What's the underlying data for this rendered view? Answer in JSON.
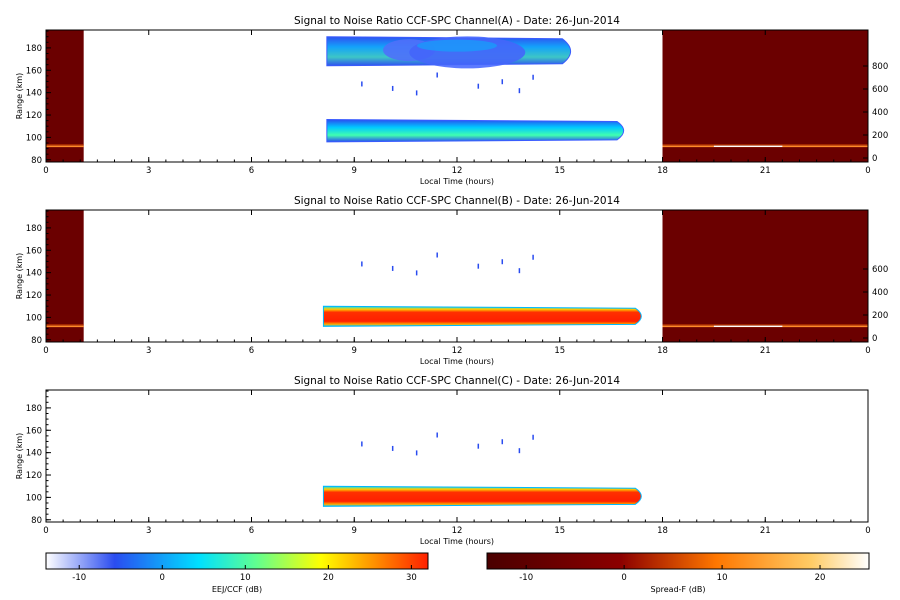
{
  "chart_data": [
    {
      "type": "heatmap",
      "title": "Signal to Noise Ratio CCF-SPC Channel(A) - Date: 26-Jun-2014",
      "xlabel": "Local Time (hours)",
      "ylabel": "Range (km)",
      "xlim": [
        0,
        24
      ],
      "ylim": [
        78,
        196
      ],
      "x_ticks": [
        "0",
        "3",
        "6",
        "9",
        "12",
        "15",
        "18",
        "21",
        "0"
      ],
      "y_ticks": [
        "80",
        "100",
        "120",
        "140",
        "160",
        "180"
      ],
      "y2_ticks": [
        "0",
        "200",
        "400",
        "600",
        "800"
      ],
      "spread_f_panels": [
        [
          0,
          1.1
        ],
        [
          18,
          24
        ]
      ],
      "spread_f_trace_km": 92,
      "eej_layers": [
        {
          "x_start": 8.2,
          "x_end": 17.0,
          "y_low": 96,
          "y_high": 116,
          "snr_db": 0
        },
        {
          "x_start": 8.2,
          "x_end": 15.5,
          "y_low": 164,
          "y_high": 190,
          "snr_db": -5
        }
      ]
    },
    {
      "type": "heatmap",
      "title": "Signal to Noise Ratio CCF-SPC Channel(B) - Date: 26-Jun-2014",
      "xlabel": "Local Time (hours)",
      "ylabel": "Range (km)",
      "xlim": [
        0,
        24
      ],
      "ylim": [
        78,
        196
      ],
      "x_ticks": [
        "0",
        "3",
        "6",
        "9",
        "12",
        "15",
        "18",
        "21",
        "0"
      ],
      "y_ticks": [
        "80",
        "100",
        "120",
        "140",
        "160",
        "180"
      ],
      "y2_ticks": [
        "0",
        "200",
        "400",
        "600"
      ],
      "spread_f_panels": [
        [
          0,
          1.1
        ],
        [
          18,
          24
        ]
      ],
      "spread_f_trace_km": 92,
      "eej_layers": [
        {
          "x_start": 8.1,
          "x_end": 17.5,
          "y_low": 92,
          "y_high": 110,
          "snr_db": 30
        }
      ]
    },
    {
      "type": "heatmap",
      "title": "Signal to Noise Ratio CCF-SPC Channel(C) - Date: 26-Jun-2014",
      "xlabel": "Local Time (hours)",
      "ylabel": "Range (km)",
      "xlim": [
        0,
        24
      ],
      "ylim": [
        78,
        196
      ],
      "x_ticks": [
        "0",
        "3",
        "6",
        "9",
        "12",
        "15",
        "18",
        "21",
        "0"
      ],
      "y_ticks": [
        "80",
        "100",
        "120",
        "140",
        "160",
        "180"
      ],
      "y2_ticks": [],
      "spread_f_panels": [],
      "eej_layers": [
        {
          "x_start": 8.1,
          "x_end": 17.5,
          "y_low": 92,
          "y_high": 110,
          "snr_db": 30
        }
      ]
    }
  ],
  "colorbars": [
    {
      "label": "EEJ/CCF (dB)",
      "range": [
        -14,
        32
      ],
      "ticks": [
        "-10",
        "0",
        "10",
        "20",
        "30"
      ],
      "colors": [
        "#ffffff",
        "#2a4cf0",
        "#00e0ff",
        "#ffff00",
        "#ff2000"
      ]
    },
    {
      "label": "Spread-F (dB)",
      "range": [
        -14,
        25
      ],
      "ticks": [
        "-10",
        "0",
        "10",
        "20"
      ],
      "colors": [
        "#4a0000",
        "#8c0000",
        "#ff7700",
        "#ffcc66",
        "#ffffff"
      ]
    }
  ],
  "colors": {
    "spread_f_bg": "#6b0000",
    "eej_strong": "#ff2000",
    "eej_weak": "#2a4cf0"
  }
}
